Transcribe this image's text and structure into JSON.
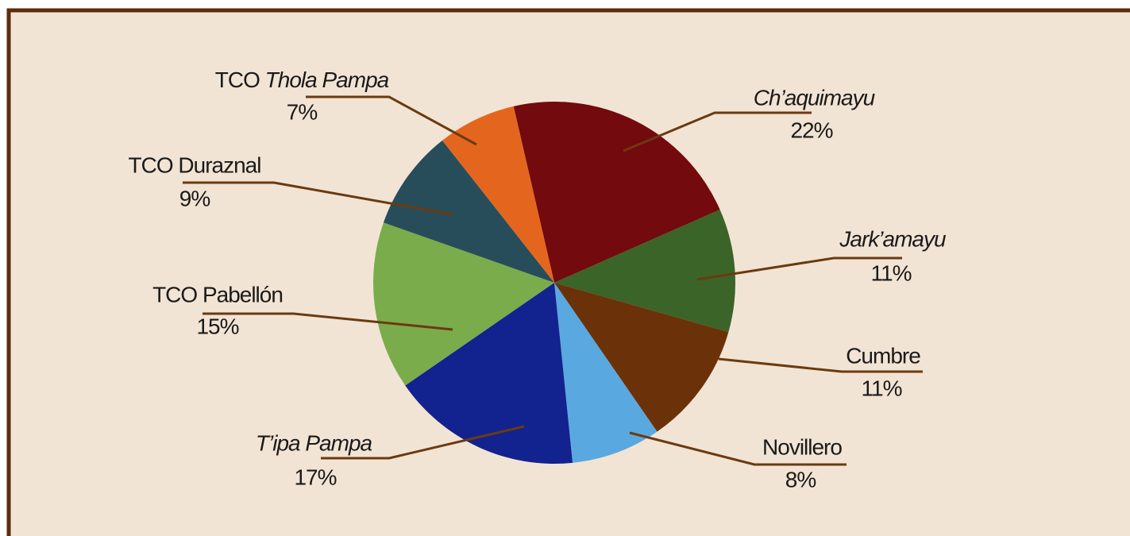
{
  "chart_data": {
    "type": "pie",
    "categories": [
      "Ch’aquimayu",
      "Jark’amayu",
      "Cumbre",
      "Novillero",
      "T’ipa Pampa",
      "TCO Pabellón",
      "TCO Duraznal",
      "TCO Thola Pampa"
    ],
    "values": [
      22,
      11,
      11,
      8,
      17,
      15,
      9,
      7
    ],
    "value_labels": [
      "22%",
      "11%",
      "11%",
      "8%",
      "17%",
      "15%",
      "9%",
      "7%"
    ],
    "colors": [
      "#730a0e",
      "#3a6428",
      "#6b3209",
      "#5aa8e0",
      "#12228f",
      "#7aac4c",
      "#284d5a",
      "#e4661e"
    ]
  }
}
